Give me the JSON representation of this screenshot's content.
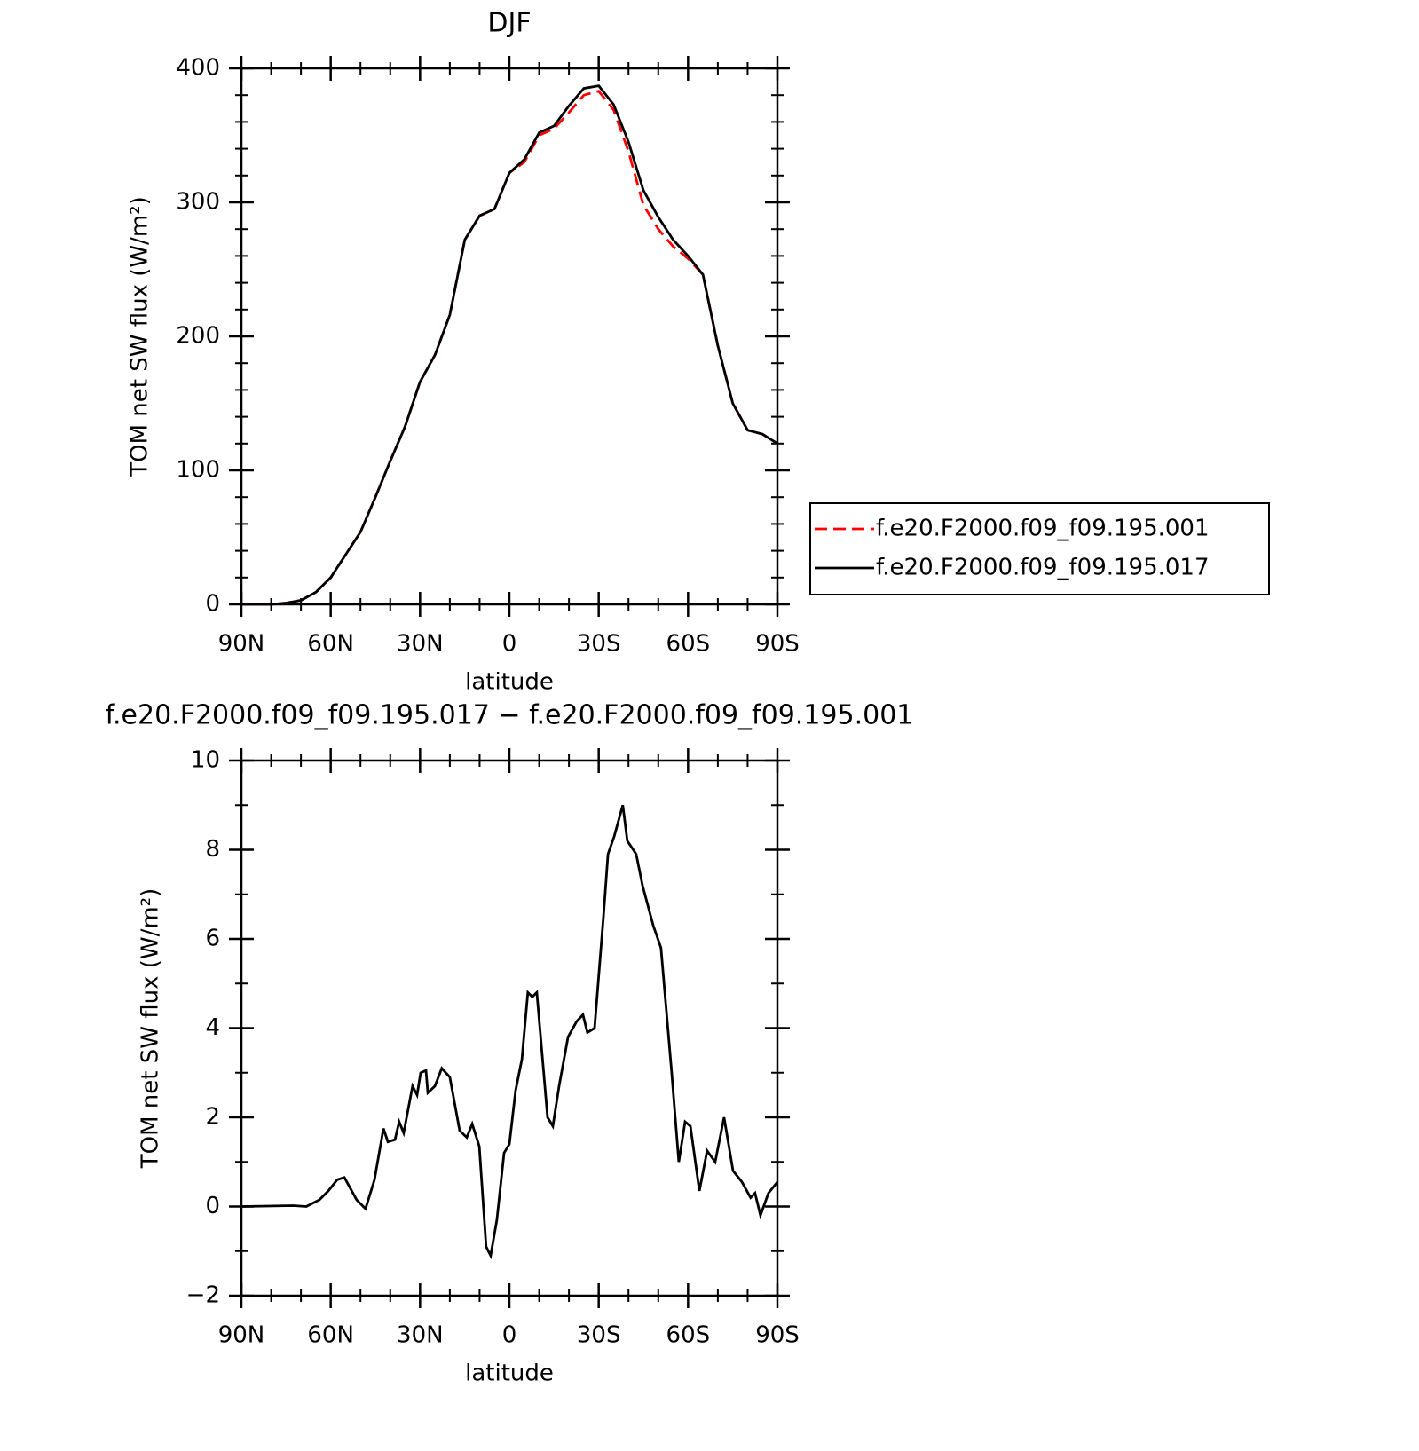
{
  "chart_data": [
    {
      "type": "line",
      "title": "DJF",
      "xlabel": "latitude",
      "ylabel": "TOM net SW flux (W/m²)",
      "x": [
        90,
        85,
        80,
        75,
        70,
        65,
        60,
        55,
        50,
        45,
        40,
        35,
        30,
        25,
        20,
        15,
        10,
        5,
        0,
        -5,
        -10,
        -15,
        -20,
        -25,
        -30,
        -35,
        -40,
        -45,
        -50,
        -55,
        -60,
        -65,
        -70,
        -75,
        -80,
        -85,
        -90
      ],
      "series": [
        {
          "name": "f.e20.F2000.f09_f09.195.001",
          "color": "#ff0000",
          "dashed": true,
          "values": [
            0,
            0,
            0,
            1,
            3,
            9,
            20,
            37,
            54,
            80,
            107,
            133,
            166,
            186,
            216,
            272,
            290,
            295,
            322,
            330,
            350,
            355,
            367,
            380,
            383,
            369,
            338,
            298,
            280,
            267,
            258,
            246,
            193,
            150,
            130,
            127,
            120
          ]
        },
        {
          "name": "f.e20.F2000.f09_f09.195.017",
          "color": "#000000",
          "dashed": false,
          "values": [
            0,
            0,
            0,
            1,
            3,
            9,
            20,
            37,
            54,
            80,
            107,
            133,
            166,
            186,
            216,
            272,
            290,
            295,
            322,
            332,
            352,
            357,
            372,
            385,
            387,
            373,
            345,
            309,
            289,
            272,
            260,
            246,
            193,
            150,
            130,
            127,
            120
          ]
        }
      ],
      "xlim": [
        90,
        -90
      ],
      "xticks": [
        {
          "value": 90,
          "label": "90N"
        },
        {
          "value": 60,
          "label": "60N"
        },
        {
          "value": 30,
          "label": "30N"
        },
        0,
        {
          "value": -30,
          "label": "30S"
        },
        {
          "value": -60,
          "label": "60S"
        },
        {
          "value": -90,
          "label": "90S"
        }
      ],
      "ylim": [
        0,
        400
      ],
      "yticks": [
        0,
        100,
        200,
        300,
        400
      ],
      "legend": "right"
    },
    {
      "type": "line",
      "title": "f.e20.F2000.f09_f09.195.017 − f.e20.F2000.f09_f09.195.001",
      "xlabel": "latitude",
      "ylabel": "TOM net SW flux (W/m²)",
      "x": [
        90,
        72.7,
        68.2,
        63.8,
        60.8,
        57.8,
        55.4,
        51.3,
        48.3,
        45.3,
        42.3,
        40.8,
        38.4,
        37,
        35.5,
        32.5,
        31,
        29.8,
        28,
        27.4,
        25,
        22.7,
        20,
        16.7,
        14.3,
        12.5,
        10.1,
        7.8,
        6.3,
        4.2,
        1.8,
        0,
        -2.1,
        -4.2,
        -6.2,
        -7.7,
        -9.2,
        -12.8,
        -14.6,
        -16.7,
        -19.7,
        -22.6,
        -24.7,
        -26.2,
        -28.6,
        -31.6,
        -33.1,
        -35.2,
        -38.1,
        -39.6,
        -42.6,
        -44.7,
        -48.3,
        -50.9,
        -54.5,
        -56.9,
        -59,
        -60.8,
        -63.8,
        -66.4,
        -69.1,
        -72.1,
        -75.1,
        -78.1,
        -81,
        -82.5,
        -84.3,
        -87,
        -90
      ],
      "series": [
        {
          "color": "#000000",
          "dashed": false,
          "values": [
            0,
            0.02,
            0,
            0.15,
            0.35,
            0.6,
            0.65,
            0.15,
            -0.05,
            0.6,
            1.75,
            1.45,
            1.5,
            1.9,
            1.65,
            2.7,
            2.5,
            3.0,
            3.05,
            2.55,
            2.7,
            3.1,
            2.9,
            1.7,
            1.55,
            1.85,
            1.35,
            -0.9,
            -1.1,
            -0.3,
            1.2,
            1.4,
            2.6,
            3.3,
            4.8,
            4.7,
            4.8,
            2.0,
            1.8,
            2.7,
            3.8,
            4.15,
            4.3,
            3.9,
            4.0,
            6.5,
            7.9,
            8.3,
            9.0,
            8.2,
            7.9,
            7.2,
            6.3,
            5.8,
            3.0,
            1.0,
            1.9,
            1.8,
            0.35,
            1.25,
            1.0,
            2.0,
            0.8,
            0.55,
            0.2,
            0.3,
            -0.2,
            0.3,
            0.55
          ]
        }
      ],
      "xlim": [
        90,
        -90
      ],
      "xticks": [
        {
          "value": 90,
          "label": "90N"
        },
        {
          "value": 60,
          "label": "60N"
        },
        {
          "value": 30,
          "label": "30N"
        },
        0,
        {
          "value": -30,
          "label": "30S"
        },
        {
          "value": -60,
          "label": "60S"
        },
        {
          "value": -90,
          "label": "90S"
        }
      ],
      "ylim": [
        -2,
        10
      ],
      "yticks": [
        {
          "value": -2,
          "label": "−2"
        },
        0,
        2,
        4,
        6,
        8,
        10
      ]
    }
  ]
}
